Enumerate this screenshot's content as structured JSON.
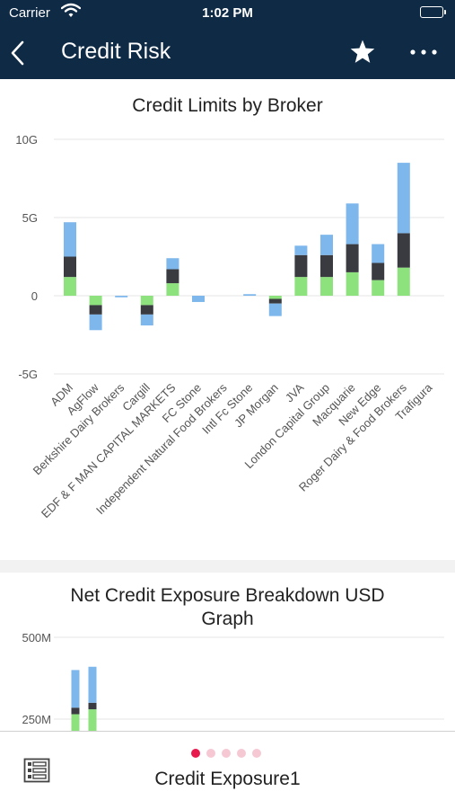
{
  "status": {
    "carrier": "Carrier",
    "time": "1:02 PM"
  },
  "nav": {
    "title": "Credit Risk",
    "back_icon": "chevron-left-icon",
    "star_icon": "star-icon",
    "more_icon": "ellipsis-icon"
  },
  "colors": {
    "navy": "#0e2a45",
    "blue_series": "#7db7ec",
    "dark_series": "#3a3b40",
    "green_series": "#8ee27e",
    "dot_active": "#e8194d",
    "dot_inactive": "#f5c8d4"
  },
  "chart_data": [
    {
      "type": "bar",
      "stacked": true,
      "title": "Credit Limits by Broker",
      "ylim": [
        -5,
        10
      ],
      "yticks": [
        {
          "v": 10,
          "label": "10G"
        },
        {
          "v": 5,
          "label": "5G"
        },
        {
          "v": 0,
          "label": "0"
        },
        {
          "v": -5,
          "label": "-5G"
        }
      ],
      "grid": true,
      "categories": [
        "ADM",
        "AgFlow",
        "Berkshire Dairy Brokers",
        "Cargill",
        "EDF & F MAN CAPITAL MARKETS",
        "FC Stone",
        "Independent Natural Food Brokers",
        "Intl Fc Stone",
        "JP Morgan",
        "JVA",
        "London Capital Group",
        "Macquarie",
        "New Edge",
        "Roger Dairy & Food Brokers",
        "Trafigura"
      ],
      "series": [
        {
          "color": "#8ee27e",
          "values": [
            1.2,
            -0.6,
            0,
            -0.6,
            0.8,
            0,
            0,
            0,
            -0.2,
            1.2,
            1.2,
            1.5,
            1.0,
            1.8,
            0
          ]
        },
        {
          "color": "#3a3b40",
          "values": [
            1.3,
            -0.6,
            0,
            -0.6,
            0.9,
            0,
            0,
            0,
            -0.3,
            1.4,
            1.4,
            1.8,
            1.1,
            2.2,
            0
          ]
        },
        {
          "color": "#7db7ec",
          "values": [
            2.2,
            -1.0,
            -0.1,
            -0.7,
            0.7,
            -0.4,
            0,
            0.1,
            -0.8,
            0.6,
            1.3,
            2.6,
            1.2,
            4.5,
            0
          ]
        }
      ]
    },
    {
      "type": "bar",
      "stacked": true,
      "title": "Net Credit Exposure Breakdown USD Graph",
      "title_lines": [
        "Net Credit Exposure Breakdown USD",
        "Graph"
      ],
      "yticks": [
        {
          "v": 500,
          "label": "500M"
        },
        {
          "v": 250,
          "label": "250M"
        }
      ],
      "grid": true,
      "unit": "M",
      "series": [
        {
          "color": "#8ee27e",
          "values": [
            265,
            280
          ]
        },
        {
          "color": "#3a3b40",
          "values": [
            20,
            20
          ]
        },
        {
          "color": "#7db7ec",
          "values": [
            115,
            110
          ]
        }
      ]
    }
  ],
  "bottom": {
    "menu_icon": "list-icon",
    "page_name": "Credit Exposure1",
    "pages": 5,
    "active_page": 0
  }
}
